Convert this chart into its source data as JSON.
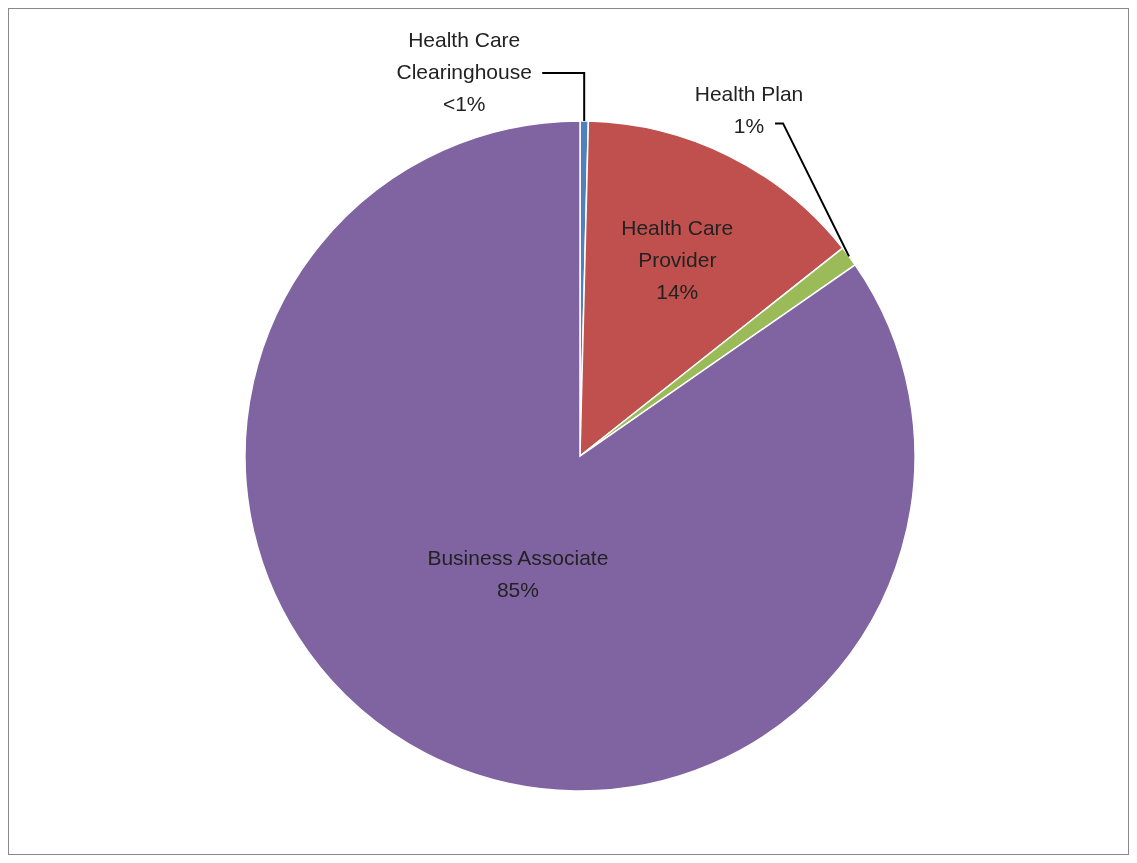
{
  "chart_data": {
    "type": "pie",
    "categories": [
      "Health Care Clearinghouse",
      "Health Care Provider",
      "Health Plan",
      "Business Associate"
    ],
    "values": [
      0.4,
      14,
      1,
      85
    ],
    "value_labels": [
      "<1%",
      "14%",
      "1%",
      "85%"
    ],
    "colors": [
      "#4f81bd",
      "#c0504d",
      "#9bbb59",
      "#8064a2"
    ]
  }
}
